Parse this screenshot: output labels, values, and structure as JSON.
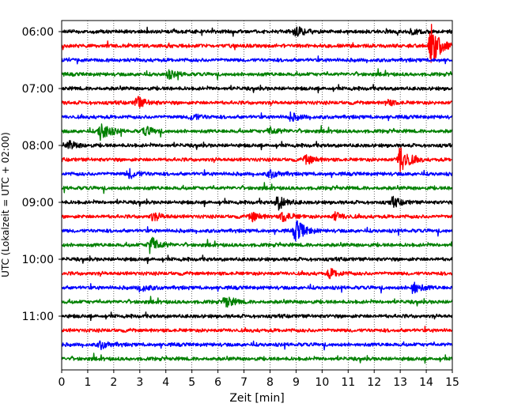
{
  "chart_data": {
    "type": "line",
    "title": "",
    "xlabel": "Zeit  [min]",
    "ylabel": "UTC (Lokalzeit = UTC + 02:00)",
    "xlim": [
      0,
      15
    ],
    "x_ticks": [
      "0",
      "1",
      "2",
      "3",
      "4",
      "5",
      "6",
      "7",
      "8",
      "9",
      "10",
      "11",
      "12",
      "13",
      "14",
      "15"
    ],
    "y_tick_labels": [
      "06:00",
      "07:00",
      "08:00",
      "09:00",
      "10:00",
      "11:00"
    ],
    "row_interval_minutes": 15,
    "start_time": "06:00",
    "grid": "vertical dotted lines at each minute",
    "color_cycle": [
      "#000000",
      "#ff0000",
      "#0000ff",
      "#008000"
    ],
    "traces": [
      {
        "time": "06:00",
        "color": "#000000",
        "events": [
          {
            "t": 9.0,
            "amp": 0.35
          },
          {
            "t": 13.5,
            "amp": 0.2
          }
        ]
      },
      {
        "time": "06:15",
        "color": "#ff0000",
        "events": [
          {
            "t": 14.2,
            "amp": 1.6
          }
        ]
      },
      {
        "time": "06:30",
        "color": "#0000ff",
        "events": []
      },
      {
        "time": "06:45",
        "color": "#008000",
        "events": [
          {
            "t": 4.1,
            "amp": 0.3
          }
        ]
      },
      {
        "time": "07:00",
        "color": "#000000",
        "events": []
      },
      {
        "time": "07:15",
        "color": "#ff0000",
        "events": [
          {
            "t": 2.9,
            "amp": 0.45
          },
          {
            "t": 12.5,
            "amp": 0.2
          }
        ]
      },
      {
        "time": "07:30",
        "color": "#0000ff",
        "events": [
          {
            "t": 5.0,
            "amp": 0.25
          },
          {
            "t": 8.8,
            "amp": 0.3
          }
        ]
      },
      {
        "time": "07:45",
        "color": "#008000",
        "events": [
          {
            "t": 1.5,
            "amp": 0.8
          },
          {
            "t": 3.2,
            "amp": 0.35
          },
          {
            "t": 8.0,
            "amp": 0.3
          }
        ]
      },
      {
        "time": "08:00",
        "color": "#000000",
        "events": [
          {
            "t": 0.3,
            "amp": 0.3
          }
        ]
      },
      {
        "time": "08:15",
        "color": "#ff0000",
        "events": [
          {
            "t": 9.4,
            "amp": 0.35
          },
          {
            "t": 13.0,
            "amp": 1.2
          }
        ]
      },
      {
        "time": "08:30",
        "color": "#0000ff",
        "events": [
          {
            "t": 2.6,
            "amp": 0.35
          },
          {
            "t": 8.0,
            "amp": 0.3
          }
        ]
      },
      {
        "time": "08:45",
        "color": "#008000",
        "events": []
      },
      {
        "time": "09:00",
        "color": "#000000",
        "events": [
          {
            "t": 8.3,
            "amp": 0.55
          },
          {
            "t": 12.7,
            "amp": 0.35
          }
        ]
      },
      {
        "time": "09:15",
        "color": "#ff0000",
        "events": [
          {
            "t": 3.5,
            "amp": 0.3
          },
          {
            "t": 7.3,
            "amp": 0.35
          },
          {
            "t": 8.5,
            "amp": 0.4
          },
          {
            "t": 10.5,
            "amp": 0.3
          }
        ]
      },
      {
        "time": "09:30",
        "color": "#0000ff",
        "events": [
          {
            "t": 9.0,
            "amp": 0.9
          }
        ]
      },
      {
        "time": "09:45",
        "color": "#008000",
        "events": [
          {
            "t": 3.4,
            "amp": 0.75
          }
        ]
      },
      {
        "time": "10:00",
        "color": "#000000",
        "events": []
      },
      {
        "time": "10:15",
        "color": "#ff0000",
        "events": [
          {
            "t": 10.3,
            "amp": 0.35
          }
        ]
      },
      {
        "time": "10:30",
        "color": "#0000ff",
        "events": [
          {
            "t": 3.0,
            "amp": 0.3
          },
          {
            "t": 13.5,
            "amp": 0.45
          }
        ]
      },
      {
        "time": "10:45",
        "color": "#008000",
        "events": [
          {
            "t": 6.3,
            "amp": 0.45
          }
        ]
      },
      {
        "time": "11:00",
        "color": "#000000",
        "events": []
      },
      {
        "time": "11:15",
        "color": "#ff0000",
        "events": []
      },
      {
        "time": "11:30",
        "color": "#0000ff",
        "events": [
          {
            "t": 1.5,
            "amp": 0.3
          }
        ]
      },
      {
        "time": "11:45",
        "color": "#008000",
        "events": []
      }
    ]
  }
}
